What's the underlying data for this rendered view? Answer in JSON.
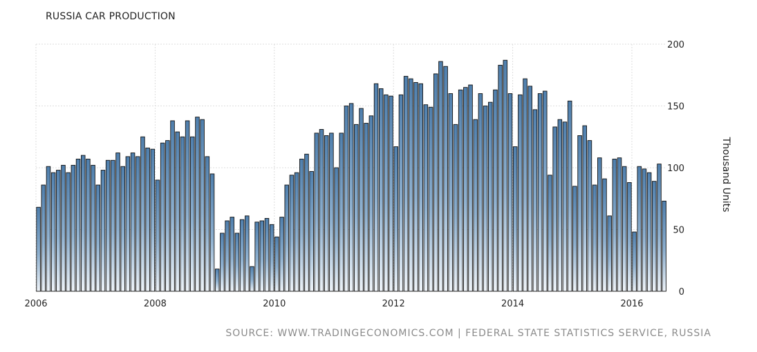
{
  "chart_data": {
    "type": "bar",
    "title": "RUSSIA CAR PRODUCTION",
    "ylabel": "Thousand Units",
    "xlabel": "",
    "ylim": [
      0,
      200
    ],
    "yticks": [
      "0",
      "50",
      "100",
      "150",
      "200"
    ],
    "xticks": [
      "2006",
      "2008",
      "2010",
      "2012",
      "2014",
      "2016"
    ],
    "x_start": "2006-01",
    "x_end": "2016-06",
    "frequency": "monthly",
    "grid": true,
    "values": [
      68,
      86,
      101,
      96,
      98,
      102,
      96,
      102,
      107,
      110,
      107,
      102,
      86,
      98,
      106,
      106,
      112,
      101,
      109,
      112,
      109,
      125,
      116,
      115,
      90,
      120,
      122,
      138,
      129,
      125,
      138,
      125,
      141,
      139,
      109,
      95,
      18,
      47,
      57,
      60,
      47,
      58,
      61,
      20,
      56,
      57,
      59,
      54,
      44,
      60,
      86,
      94,
      96,
      107,
      111,
      97,
      128,
      131,
      126,
      128,
      100,
      128,
      150,
      152,
      135,
      148,
      136,
      142,
      168,
      164,
      159,
      158,
      117,
      159,
      174,
      172,
      169,
      168,
      151,
      149,
      176,
      186,
      182,
      160,
      135,
      163,
      165,
      167,
      139,
      160,
      150,
      153,
      163,
      183,
      187,
      160,
      117,
      159,
      172,
      166,
      147,
      160,
      162,
      94,
      133,
      139,
      137,
      154,
      85,
      126,
      134,
      122,
      86,
      108,
      91,
      61,
      107,
      108,
      101,
      88,
      48,
      101,
      99,
      96,
      89,
      103,
      73
    ],
    "bar_color": "#4f7fad",
    "bar_outline": "#111111"
  },
  "source_text": "SOURCE: WWW.TRADINGECONOMICS.COM | FEDERAL STATE STATISTICS SERVICE, RUSSIA"
}
